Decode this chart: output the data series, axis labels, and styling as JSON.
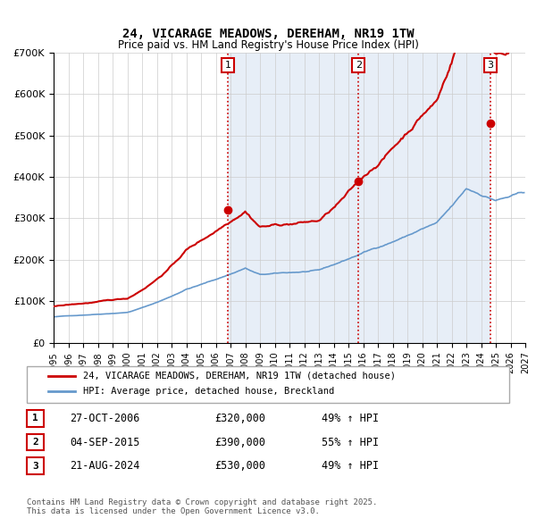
{
  "title": "24, VICARAGE MEADOWS, DEREHAM, NR19 1TW",
  "subtitle": "Price paid vs. HM Land Registry's House Price Index (HPI)",
  "legend_house": "24, VICARAGE MEADOWS, DEREHAM, NR19 1TW (detached house)",
  "legend_hpi": "HPI: Average price, detached house, Breckland",
  "house_color": "#cc0000",
  "hpi_color": "#6699cc",
  "background_color": "#f0f4ff",
  "shaded_region": [
    2006.83,
    2024.64
  ],
  "vlines": [
    2006.83,
    2015.68,
    2024.64
  ],
  "vline_labels": [
    "1",
    "2",
    "3"
  ],
  "sale_points": [
    {
      "year": 2006.83,
      "price": 320000
    },
    {
      "year": 2015.68,
      "price": 390000
    },
    {
      "year": 2024.64,
      "price": 530000
    }
  ],
  "table_rows": [
    {
      "num": "1",
      "date": "27-OCT-2006",
      "price": "£320,000",
      "hpi": "49% ↑ HPI"
    },
    {
      "num": "2",
      "date": "04-SEP-2015",
      "price": "£390,000",
      "hpi": "55% ↑ HPI"
    },
    {
      "num": "3",
      "date": "21-AUG-2024",
      "price": "£530,000",
      "hpi": "49% ↑ HPI"
    }
  ],
  "footer": "Contains HM Land Registry data © Crown copyright and database right 2025.\nThis data is licensed under the Open Government Licence v3.0.",
  "ylim": [
    0,
    700000
  ],
  "xlim": [
    1995,
    2027
  ],
  "yticks": [
    0,
    100000,
    200000,
    300000,
    400000,
    500000,
    600000,
    700000
  ],
  "ytick_labels": [
    "£0",
    "£100K",
    "£200K",
    "£300K",
    "£400K",
    "£500K",
    "£600K",
    "£700K"
  ],
  "xticks": [
    1995,
    1996,
    1997,
    1998,
    1999,
    2000,
    2001,
    2002,
    2003,
    2004,
    2005,
    2006,
    2007,
    2008,
    2009,
    2010,
    2011,
    2012,
    2013,
    2014,
    2015,
    2016,
    2017,
    2018,
    2019,
    2020,
    2021,
    2022,
    2023,
    2024,
    2025,
    2026,
    2027
  ]
}
